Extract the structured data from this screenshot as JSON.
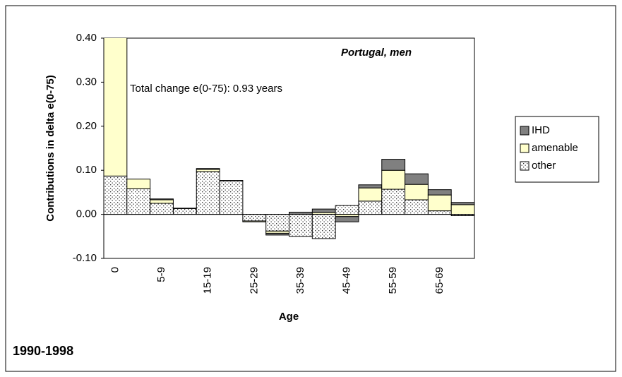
{
  "chart_data": {
    "type": "stacked_bar",
    "title": "Portugal, men",
    "annotation": "Total change e(0-75): 0.93 years",
    "y_label": "Contributions in delta e(0-75)",
    "x_label": "Age",
    "footer": "1990-1998",
    "categories": [
      "0",
      null,
      "5-9",
      null,
      "15-19",
      null,
      "25-29",
      null,
      "35-39",
      null,
      "45-49",
      null,
      "55-59",
      null,
      "65-69",
      null
    ],
    "series": [
      {
        "name": "other",
        "color": "#ffffff",
        "values": [
          0.087,
          0.058,
          0.025,
          0.013,
          0.097,
          0.076,
          -0.015,
          -0.038,
          -0.05,
          -0.055,
          0.02,
          0.03,
          0.057,
          0.033,
          0.008,
          -0.003
        ]
      },
      {
        "name": "amenable",
        "color": "#ffffcc",
        "values": [
          0.33,
          0.022,
          0.008,
          0.001,
          0.005,
          0.001,
          -0.002,
          -0.005,
          0,
          0.004,
          -0.005,
          0.03,
          0.043,
          0.035,
          0.036,
          0.022
        ]
      },
      {
        "name": "IHD",
        "color": "#808080",
        "values": [
          0,
          0,
          0.002,
          0,
          0.002,
          0,
          0,
          -0.004,
          0.005,
          0.008,
          -0.012,
          0.007,
          0.025,
          0.024,
          0.012,
          0.005
        ]
      }
    ],
    "ylim": [
      -0.1,
      0.4
    ],
    "yticks": [
      {
        "value": -0.1,
        "label": "-0.10"
      },
      {
        "value": 0,
        "label": "0.00"
      },
      {
        "value": 0.1,
        "label": "0.10"
      },
      {
        "value": 0.2,
        "label": "0.20"
      },
      {
        "value": 0.3,
        "label": "0.30"
      },
      {
        "value": 0.4,
        "label": "0.40"
      }
    ],
    "legend": "right"
  }
}
